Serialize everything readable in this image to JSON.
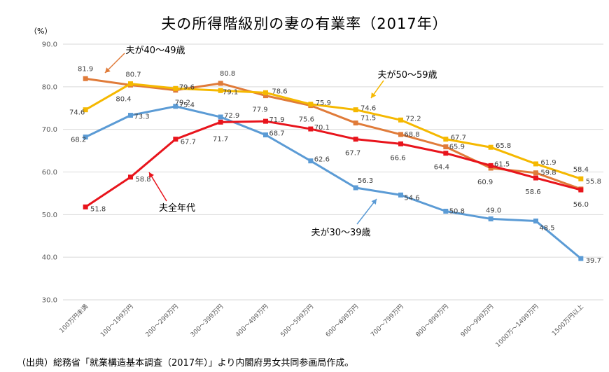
{
  "chart_data": {
    "type": "line",
    "title": "夫の所得階級別の妻の有業率（2017年）",
    "unit_label": "（%）",
    "source": "（出典）総務省「就業構造基本調査（2017年）」より内閣府男女共同参画局作成。",
    "categories": [
      "100万円未満",
      "100～199万円",
      "200～299万円",
      "300～399万円",
      "400～499万円",
      "500～599万円",
      "600～699万円",
      "700～799万円",
      "800～899万円",
      "900～999万円",
      "1000万～1499万円",
      "1500万円以上"
    ],
    "ylim": [
      30,
      90
    ],
    "yticks": [
      "30.0",
      "40.0",
      "50.0",
      "60.0",
      "70.0",
      "80.0",
      "90.0"
    ],
    "grid": true,
    "series": [
      {
        "name": "夫が40～49歳",
        "color": "#e07b39",
        "values": [
          81.9,
          80.4,
          79.2,
          80.8,
          77.9,
          75.6,
          71.5,
          68.8,
          65.9,
          60.9,
          59.8,
          56.0
        ]
      },
      {
        "name": "夫が50～59歳",
        "color": "#f5b800",
        "values": [
          74.6,
          80.7,
          79.6,
          79.1,
          78.6,
          75.9,
          74.6,
          72.2,
          67.7,
          65.8,
          61.9,
          58.4
        ]
      },
      {
        "name": "夫が30～39歳",
        "color": "#5b9bd5",
        "values": [
          68.2,
          73.3,
          75.4,
          72.9,
          68.7,
          62.6,
          56.3,
          54.6,
          50.8,
          49.0,
          48.5,
          39.7
        ]
      },
      {
        "name": "夫全年代",
        "color": "#e8141c",
        "values": [
          51.8,
          58.8,
          67.7,
          71.7,
          71.9,
          70.1,
          67.7,
          66.6,
          64.4,
          61.5,
          58.6,
          55.8
        ]
      }
    ]
  }
}
